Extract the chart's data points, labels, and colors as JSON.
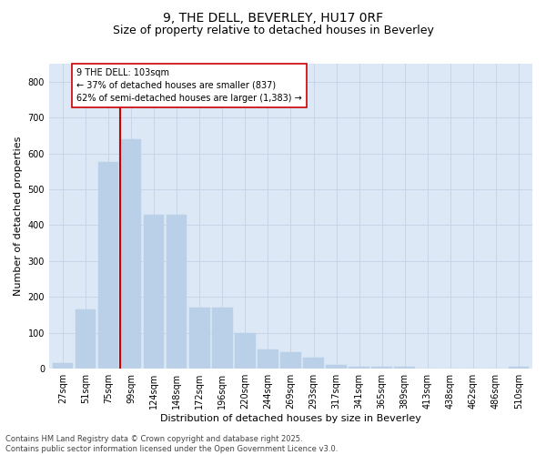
{
  "title1": "9, THE DELL, BEVERLEY, HU17 0RF",
  "title2": "Size of property relative to detached houses in Beverley",
  "xlabel": "Distribution of detached houses by size in Beverley",
  "ylabel": "Number of detached properties",
  "bar_labels": [
    "27sqm",
    "51sqm",
    "75sqm",
    "99sqm",
    "124sqm",
    "148sqm",
    "172sqm",
    "196sqm",
    "220sqm",
    "244sqm",
    "269sqm",
    "293sqm",
    "317sqm",
    "341sqm",
    "365sqm",
    "389sqm",
    "413sqm",
    "438sqm",
    "462sqm",
    "486sqm",
    "510sqm"
  ],
  "bar_values": [
    15,
    165,
    575,
    640,
    430,
    430,
    170,
    170,
    100,
    55,
    45,
    30,
    10,
    5,
    5,
    5,
    0,
    0,
    0,
    0,
    5
  ],
  "bar_color": "#bad0e8",
  "bar_edge_color": "#bad0e8",
  "vline_color": "#cc0000",
  "annotation_text": "9 THE DELL: 103sqm\n← 37% of detached houses are smaller (837)\n62% of semi-detached houses are larger (1,383) →",
  "annotation_box_edgecolor": "#cc0000",
  "ylim": [
    0,
    850
  ],
  "yticks": [
    0,
    100,
    200,
    300,
    400,
    500,
    600,
    700,
    800
  ],
  "grid_color": "#c8d4e8",
  "background_color": "#dce8f5",
  "footer": "Contains HM Land Registry data © Crown copyright and database right 2025.\nContains public sector information licensed under the Open Government Licence v3.0.",
  "title1_fontsize": 10,
  "title2_fontsize": 9,
  "xlabel_fontsize": 8,
  "ylabel_fontsize": 8,
  "tick_fontsize": 7,
  "annotation_fontsize": 7,
  "footer_fontsize": 6
}
